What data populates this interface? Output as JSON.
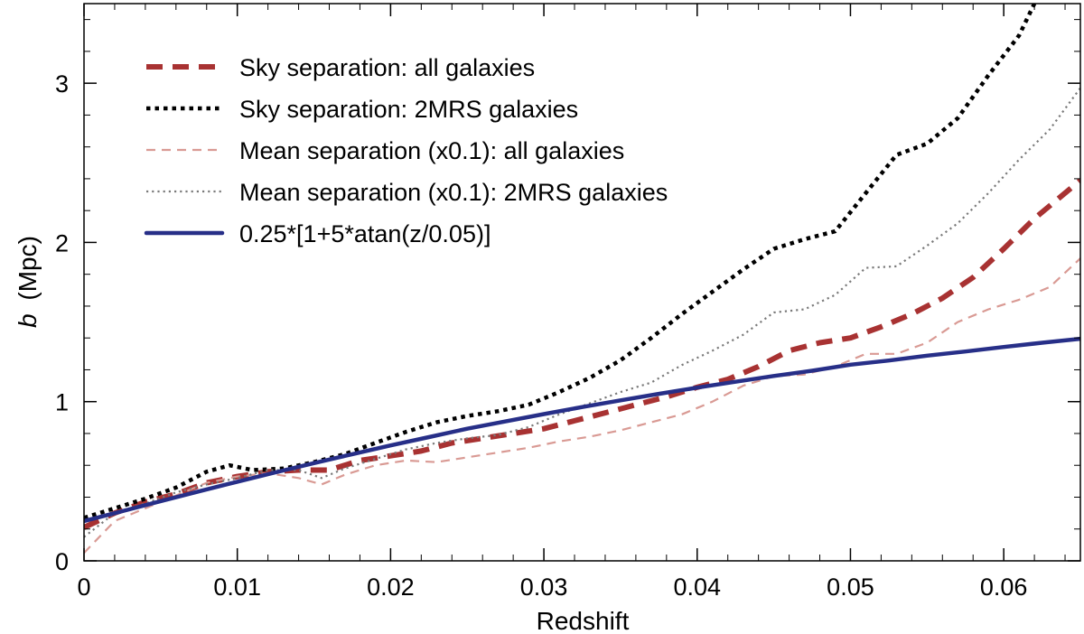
{
  "chart_data": {
    "type": "line",
    "xlabel": "Redshift",
    "ylabel_symbol": "b",
    "ylabel_unit": "(Mpc)",
    "xlim": [
      0,
      0.065
    ],
    "ylim": [
      0,
      3.5
    ],
    "x_ticks": [
      0,
      0.01,
      0.02,
      0.03,
      0.04,
      0.05,
      0.06
    ],
    "x_tick_labels": [
      "0",
      "0.01",
      "0.02",
      "0.03",
      "0.04",
      "0.05",
      "0.06"
    ],
    "y_ticks": [
      0,
      1,
      2,
      3
    ],
    "y_tick_labels": [
      "0",
      "1",
      "2",
      "3"
    ],
    "grid": false,
    "legend_position": "top-left",
    "series": [
      {
        "name": "Sky separation: all galaxies",
        "color": "#a83232",
        "dash": "thick-dashed",
        "x": [
          0,
          0.002,
          0.004,
          0.006,
          0.008,
          0.01,
          0.012,
          0.014,
          0.016,
          0.018,
          0.02,
          0.022,
          0.024,
          0.026,
          0.028,
          0.03,
          0.032,
          0.034,
          0.036,
          0.038,
          0.04,
          0.042,
          0.044,
          0.046,
          0.048,
          0.05,
          0.052,
          0.054,
          0.056,
          0.058,
          0.06,
          0.062,
          0.065
        ],
        "values": [
          0.21,
          0.3,
          0.37,
          0.42,
          0.49,
          0.53,
          0.56,
          0.57,
          0.57,
          0.63,
          0.66,
          0.69,
          0.74,
          0.77,
          0.8,
          0.83,
          0.88,
          0.93,
          0.98,
          1.03,
          1.09,
          1.14,
          1.22,
          1.32,
          1.37,
          1.4,
          1.47,
          1.55,
          1.65,
          1.78,
          1.96,
          2.15,
          2.39
        ]
      },
      {
        "name": "Sky separation: 2MRS galaxies",
        "color": "#000000",
        "dash": "thick-dotted",
        "x": [
          0,
          0.002,
          0.004,
          0.006,
          0.008,
          0.0095,
          0.011,
          0.013,
          0.015,
          0.017,
          0.019,
          0.021,
          0.023,
          0.025,
          0.027,
          0.029,
          0.031,
          0.033,
          0.035,
          0.037,
          0.039,
          0.041,
          0.043,
          0.045,
          0.047,
          0.049,
          0.051,
          0.053,
          0.055,
          0.057,
          0.059,
          0.061,
          0.062
        ],
        "values": [
          0.27,
          0.33,
          0.39,
          0.46,
          0.56,
          0.6,
          0.57,
          0.58,
          0.62,
          0.67,
          0.74,
          0.81,
          0.87,
          0.91,
          0.94,
          0.98,
          1.06,
          1.15,
          1.26,
          1.4,
          1.55,
          1.69,
          1.83,
          1.96,
          2.02,
          2.07,
          2.31,
          2.55,
          2.62,
          2.78,
          3.05,
          3.3,
          3.5
        ]
      },
      {
        "name": "Mean separation (x0.1): all galaxies",
        "color": "#d99a94",
        "dash": "thin-dashed",
        "x": [
          0,
          0.002,
          0.004,
          0.006,
          0.008,
          0.01,
          0.012,
          0.014,
          0.0155,
          0.017,
          0.019,
          0.021,
          0.023,
          0.025,
          0.027,
          0.029,
          0.031,
          0.033,
          0.035,
          0.037,
          0.039,
          0.041,
          0.043,
          0.045,
          0.047,
          0.049,
          0.051,
          0.053,
          0.055,
          0.057,
          0.059,
          0.061,
          0.063,
          0.065
        ],
        "values": [
          0.05,
          0.25,
          0.33,
          0.41,
          0.49,
          0.53,
          0.55,
          0.52,
          0.48,
          0.54,
          0.6,
          0.63,
          0.62,
          0.65,
          0.68,
          0.71,
          0.75,
          0.78,
          0.82,
          0.87,
          0.92,
          1.0,
          1.1,
          1.16,
          1.17,
          1.22,
          1.3,
          1.3,
          1.37,
          1.5,
          1.58,
          1.64,
          1.72,
          1.9
        ]
      },
      {
        "name": "Mean separation (x0.1): 2MRS galaxies",
        "color": "#7a7a7a",
        "dash": "thin-dotted",
        "x": [
          0,
          0.002,
          0.004,
          0.006,
          0.008,
          0.01,
          0.012,
          0.014,
          0.0155,
          0.017,
          0.019,
          0.021,
          0.023,
          0.025,
          0.027,
          0.029,
          0.031,
          0.033,
          0.035,
          0.037,
          0.039,
          0.041,
          0.043,
          0.045,
          0.047,
          0.049,
          0.051,
          0.053,
          0.055,
          0.057,
          0.059,
          0.061,
          0.063,
          0.065
        ],
        "values": [
          0.15,
          0.3,
          0.36,
          0.43,
          0.48,
          0.52,
          0.57,
          0.57,
          0.52,
          0.58,
          0.64,
          0.7,
          0.74,
          0.77,
          0.79,
          0.84,
          0.92,
          0.99,
          1.06,
          1.12,
          1.23,
          1.32,
          1.42,
          1.56,
          1.58,
          1.67,
          1.84,
          1.85,
          1.98,
          2.12,
          2.31,
          2.52,
          2.71,
          2.97
        ]
      },
      {
        "name": "0.25*[1+5*atan(z/0.05)]",
        "color": "#272f88",
        "dash": "solid",
        "function": "0.25*(1+5*atan(z/0.05))",
        "x": [
          0,
          0.0025,
          0.005,
          0.0075,
          0.01,
          0.0125,
          0.015,
          0.0175,
          0.02,
          0.0225,
          0.025,
          0.0275,
          0.03,
          0.0325,
          0.035,
          0.0375,
          0.04,
          0.0425,
          0.045,
          0.0475,
          0.05,
          0.0525,
          0.055,
          0.0575,
          0.06,
          0.0625,
          0.065
        ],
        "values": [
          0.25,
          0.312,
          0.375,
          0.436,
          0.497,
          0.556,
          0.614,
          0.67,
          0.725,
          0.777,
          0.83,
          0.876,
          0.922,
          0.966,
          1.008,
          1.049,
          1.088,
          1.125,
          1.161,
          1.194,
          1.232,
          1.258,
          1.289,
          1.315,
          1.343,
          1.37,
          1.395
        ]
      }
    ]
  }
}
